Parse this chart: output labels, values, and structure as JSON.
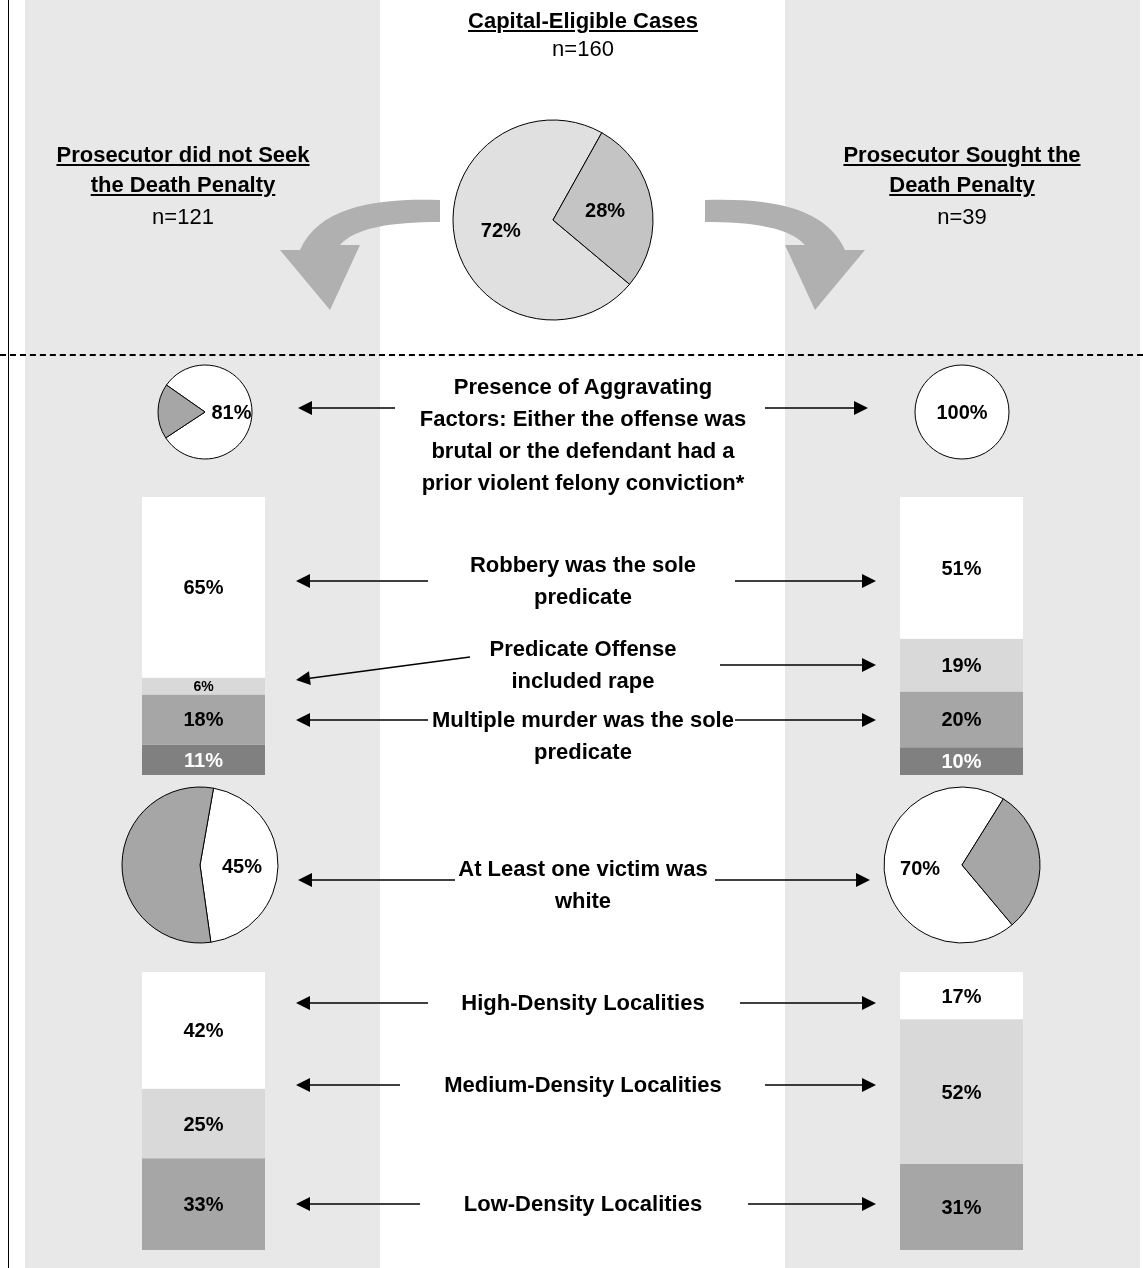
{
  "chart_data": [
    {
      "type": "pie",
      "title": "Capital-Eligible Cases",
      "subtitle": "n=160",
      "categories": [
        null,
        null
      ],
      "values": [
        72,
        28
      ],
      "colors": [
        "#e0e0e0",
        "#c4c4c4"
      ],
      "value_labels": [
        "72%",
        "28%"
      ],
      "annotations": [
        "Prosecutor did not Seek the Death Penalty",
        "n=121",
        "Prosecutor Sought the Death Penalty",
        "n=39"
      ]
    },
    {
      "type": "pie",
      "categories": [
        null,
        null
      ],
      "values": [
        81,
        19
      ],
      "colors": [
        "#ffffff",
        "#a6a6a6"
      ],
      "value_labels": [
        "81%",
        null
      ],
      "annotations": [
        "Presence of Aggravating Factors: Either the offense was brutal or the defendant had a prior violent felony conviction*"
      ]
    },
    {
      "type": "pie",
      "categories": [
        null
      ],
      "values": [
        100
      ],
      "colors": [
        "#ffffff"
      ],
      "value_labels": [
        "100%"
      ]
    },
    {
      "type": "bar",
      "stacked": true,
      "categories": [
        null
      ],
      "tick_labels": false,
      "annotations": [
        "Robbery was the sole predicate",
        "Predicate Offense included rape",
        "Multiple murder was the sole predicate"
      ],
      "series": [
        {
          "color": "#808080",
          "values": [
            11
          ],
          "value_labels": [
            "11%"
          ]
        },
        {
          "color": "#a6a6a6",
          "values": [
            18
          ],
          "value_labels": [
            "18%"
          ]
        },
        {
          "color": "#d9d9d9",
          "values": [
            6
          ],
          "value_labels": [
            "6%"
          ]
        },
        {
          "color": "#ffffff",
          "values": [
            65
          ],
          "value_labels": [
            "65%"
          ]
        }
      ]
    },
    {
      "type": "bar",
      "stacked": true,
      "categories": [
        null
      ],
      "tick_labels": false,
      "series": [
        {
          "color": "#808080",
          "values": [
            10
          ],
          "value_labels": [
            "10%"
          ]
        },
        {
          "color": "#a6a6a6",
          "values": [
            20
          ],
          "value_labels": [
            "20%"
          ]
        },
        {
          "color": "#d9d9d9",
          "values": [
            19
          ],
          "value_labels": [
            "19%"
          ]
        },
        {
          "color": "#ffffff",
          "values": [
            51
          ],
          "value_labels": [
            "51%"
          ]
        }
      ]
    },
    {
      "type": "pie",
      "categories": [
        null,
        null
      ],
      "values": [
        45,
        55
      ],
      "colors": [
        "#ffffff",
        "#a6a6a6"
      ],
      "value_labels": [
        "45%",
        null
      ],
      "annotations": [
        "At Least one victim was white"
      ]
    },
    {
      "type": "pie",
      "categories": [
        null,
        null
      ],
      "values": [
        70,
        30
      ],
      "colors": [
        "#ffffff",
        "#a6a6a6"
      ],
      "value_labels": [
        "70%",
        null
      ]
    },
    {
      "type": "bar",
      "stacked": true,
      "categories": [
        null
      ],
      "tick_labels": false,
      "annotations": [
        "High-Density Localities",
        "Medium-Density Localities",
        "Low-Density Localities"
      ],
      "series": [
        {
          "color": "#a6a6a6",
          "values": [
            33
          ],
          "value_labels": [
            "33%"
          ]
        },
        {
          "color": "#d9d9d9",
          "values": [
            25
          ],
          "value_labels": [
            "25%"
          ]
        },
        {
          "color": "#ffffff",
          "values": [
            42
          ],
          "value_labels": [
            "42%"
          ]
        }
      ]
    },
    {
      "type": "bar",
      "stacked": true,
      "categories": [
        null
      ],
      "tick_labels": false,
      "series": [
        {
          "color": "#a6a6a6",
          "values": [
            31
          ],
          "value_labels": [
            "31%"
          ]
        },
        {
          "color": "#d9d9d9",
          "values": [
            52
          ],
          "value_labels": [
            "52%"
          ]
        },
        {
          "color": "#ffffff",
          "values": [
            17
          ],
          "value_labels": [
            "17%"
          ]
        }
      ]
    }
  ]
}
